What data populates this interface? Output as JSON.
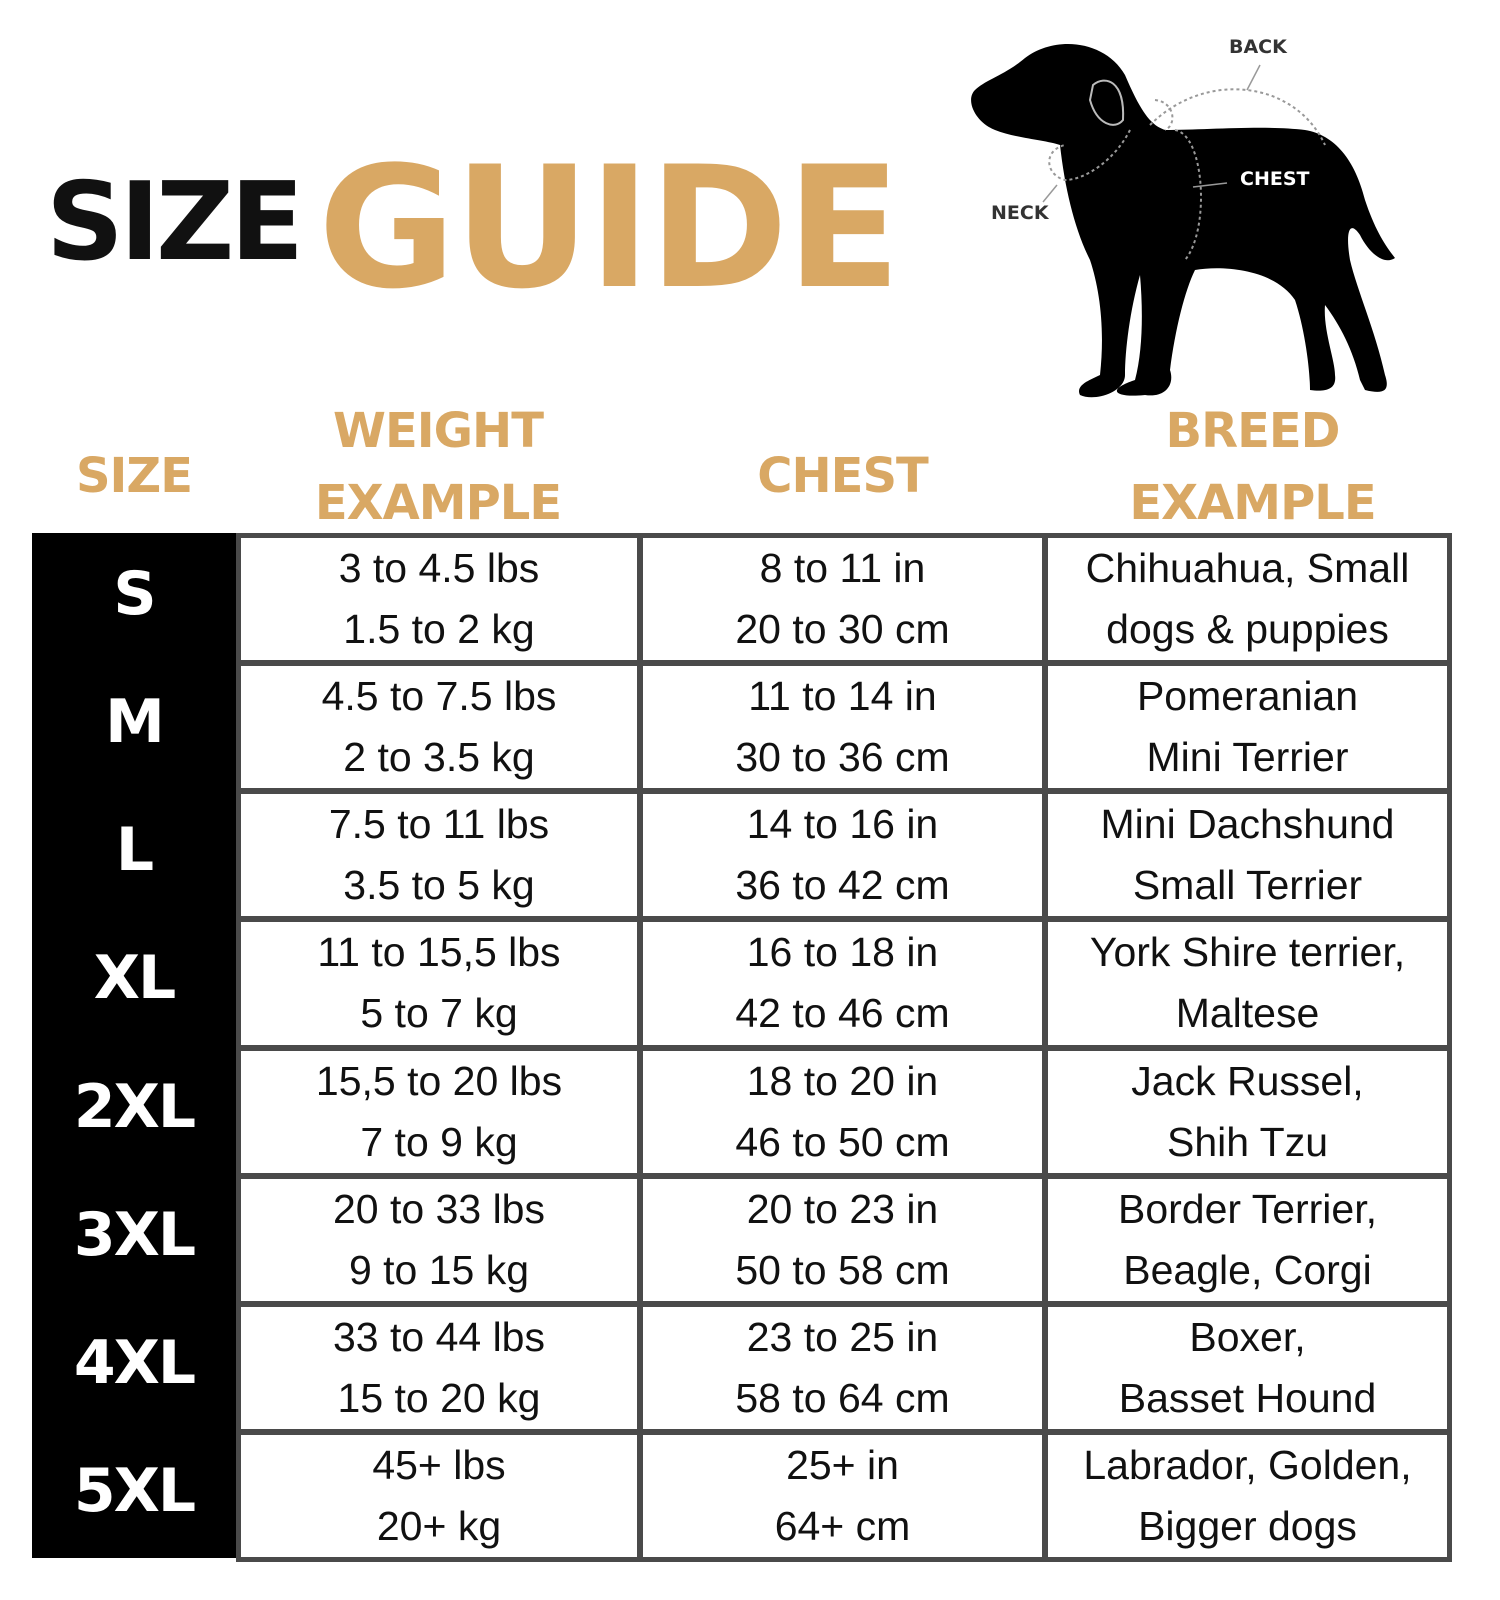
{
  "title": {
    "word1": "SIZE",
    "word2": "GUIDE"
  },
  "colors": {
    "accent": "#d9a864",
    "size_column": "#000000",
    "grid": "#4a4a4a"
  },
  "diagram": {
    "labels": {
      "back": "BACK",
      "chest": "CHEST",
      "neck": "NECK"
    }
  },
  "table": {
    "headers": {
      "size": "SIZE",
      "weight_line1": "WEIGHT",
      "weight_line2": "EXAMPLE",
      "chest": "CHEST",
      "breed_line1": "BREED",
      "breed_line2": "EXAMPLE"
    },
    "rows": [
      {
        "size": "S",
        "weight": [
          "3 to 4.5 lbs",
          "1.5 to 2 kg"
        ],
        "chest": [
          "8 to 11 in",
          "20 to 30 cm"
        ],
        "breed": [
          "Chihuahua, Small",
          "dogs & puppies"
        ]
      },
      {
        "size": "M",
        "weight": [
          "4.5 to 7.5 lbs",
          "2 to 3.5 kg"
        ],
        "chest": [
          "11 to 14 in",
          "30 to 36 cm"
        ],
        "breed": [
          "Pomeranian",
          "Mini Terrier"
        ]
      },
      {
        "size": "L",
        "weight": [
          "7.5 to 11 lbs",
          "3.5 to 5 kg"
        ],
        "chest": [
          "14 to 16 in",
          "36 to 42 cm"
        ],
        "breed": [
          "Mini Dachshund",
          "Small Terrier"
        ]
      },
      {
        "size": "XL",
        "weight": [
          "11 to 15,5 lbs",
          "5 to 7 kg"
        ],
        "chest": [
          "16 to 18 in",
          "42 to 46 cm"
        ],
        "breed": [
          "York Shire terrier,",
          "Maltese"
        ]
      },
      {
        "size": "2XL",
        "weight": [
          "15,5 to 20 lbs",
          "7 to 9 kg"
        ],
        "chest": [
          "18 to 20 in",
          "46 to 50 cm"
        ],
        "breed": [
          "Jack Russel,",
          "Shih Tzu"
        ]
      },
      {
        "size": "3XL",
        "weight": [
          "20 to 33 lbs",
          "9 to 15 kg"
        ],
        "chest": [
          "20 to 23 in",
          "50 to 58 cm"
        ],
        "breed": [
          "Border Terrier,",
          "Beagle, Corgi"
        ]
      },
      {
        "size": "4XL",
        "weight": [
          "33 to 44 lbs",
          "15 to 20 kg"
        ],
        "chest": [
          "23 to 25 in",
          "58 to 64 cm"
        ],
        "breed": [
          "Boxer,",
          "Basset Hound"
        ]
      },
      {
        "size": "5XL",
        "weight": [
          "45+ lbs",
          "20+ kg"
        ],
        "chest": [
          "25+ in",
          "64+ cm"
        ],
        "breed": [
          "Labrador, Golden,",
          "Bigger dogs"
        ]
      }
    ]
  }
}
